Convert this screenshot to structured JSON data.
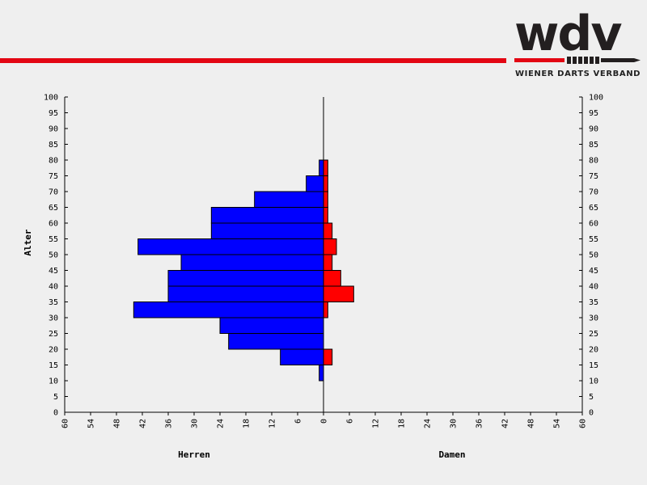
{
  "brand": {
    "logo_text": "wdv",
    "tagline": "WIENER DARTS VERBAND",
    "red": "#e30613",
    "dark": "#231f20"
  },
  "chart_data": {
    "type": "bar",
    "orientation": "horizontal",
    "ylabel": "Alter",
    "y_ticks": [
      0,
      5,
      10,
      15,
      20,
      25,
      30,
      35,
      40,
      45,
      50,
      55,
      60,
      65,
      70,
      75,
      80,
      85,
      90,
      95,
      100
    ],
    "x_ticks": [
      60,
      54,
      48,
      42,
      36,
      30,
      24,
      18,
      12,
      6,
      0,
      6,
      12,
      18,
      24,
      30,
      36,
      42,
      48,
      54,
      60
    ],
    "xlim": [
      -60,
      60
    ],
    "ylim": [
      0,
      100
    ],
    "grid": false,
    "series": [
      {
        "name": "Herren",
        "color": "#0000ff",
        "bins": [
          {
            "from": 10,
            "to": 15,
            "value": 1
          },
          {
            "from": 15,
            "to": 20,
            "value": 10
          },
          {
            "from": 20,
            "to": 25,
            "value": 22
          },
          {
            "from": 25,
            "to": 30,
            "value": 24
          },
          {
            "from": 30,
            "to": 35,
            "value": 44
          },
          {
            "from": 35,
            "to": 40,
            "value": 36
          },
          {
            "from": 40,
            "to": 45,
            "value": 36
          },
          {
            "from": 45,
            "to": 50,
            "value": 33
          },
          {
            "from": 50,
            "to": 55,
            "value": 43
          },
          {
            "from": 55,
            "to": 60,
            "value": 26
          },
          {
            "from": 60,
            "to": 65,
            "value": 26
          },
          {
            "from": 65,
            "to": 70,
            "value": 16
          },
          {
            "from": 70,
            "to": 75,
            "value": 4
          },
          {
            "from": 75,
            "to": 80,
            "value": 1
          }
        ]
      },
      {
        "name": "Damen",
        "color": "#ff0000",
        "bins": [
          {
            "from": 15,
            "to": 20,
            "value": 2
          },
          {
            "from": 30,
            "to": 35,
            "value": 1
          },
          {
            "from": 35,
            "to": 40,
            "value": 7
          },
          {
            "from": 40,
            "to": 45,
            "value": 4
          },
          {
            "from": 45,
            "to": 50,
            "value": 2
          },
          {
            "from": 50,
            "to": 55,
            "value": 3
          },
          {
            "from": 55,
            "to": 60,
            "value": 2
          },
          {
            "from": 60,
            "to": 65,
            "value": 1
          },
          {
            "from": 65,
            "to": 70,
            "value": 1
          },
          {
            "from": 70,
            "to": 75,
            "value": 1
          },
          {
            "from": 75,
            "to": 80,
            "value": 1
          }
        ]
      }
    ]
  }
}
